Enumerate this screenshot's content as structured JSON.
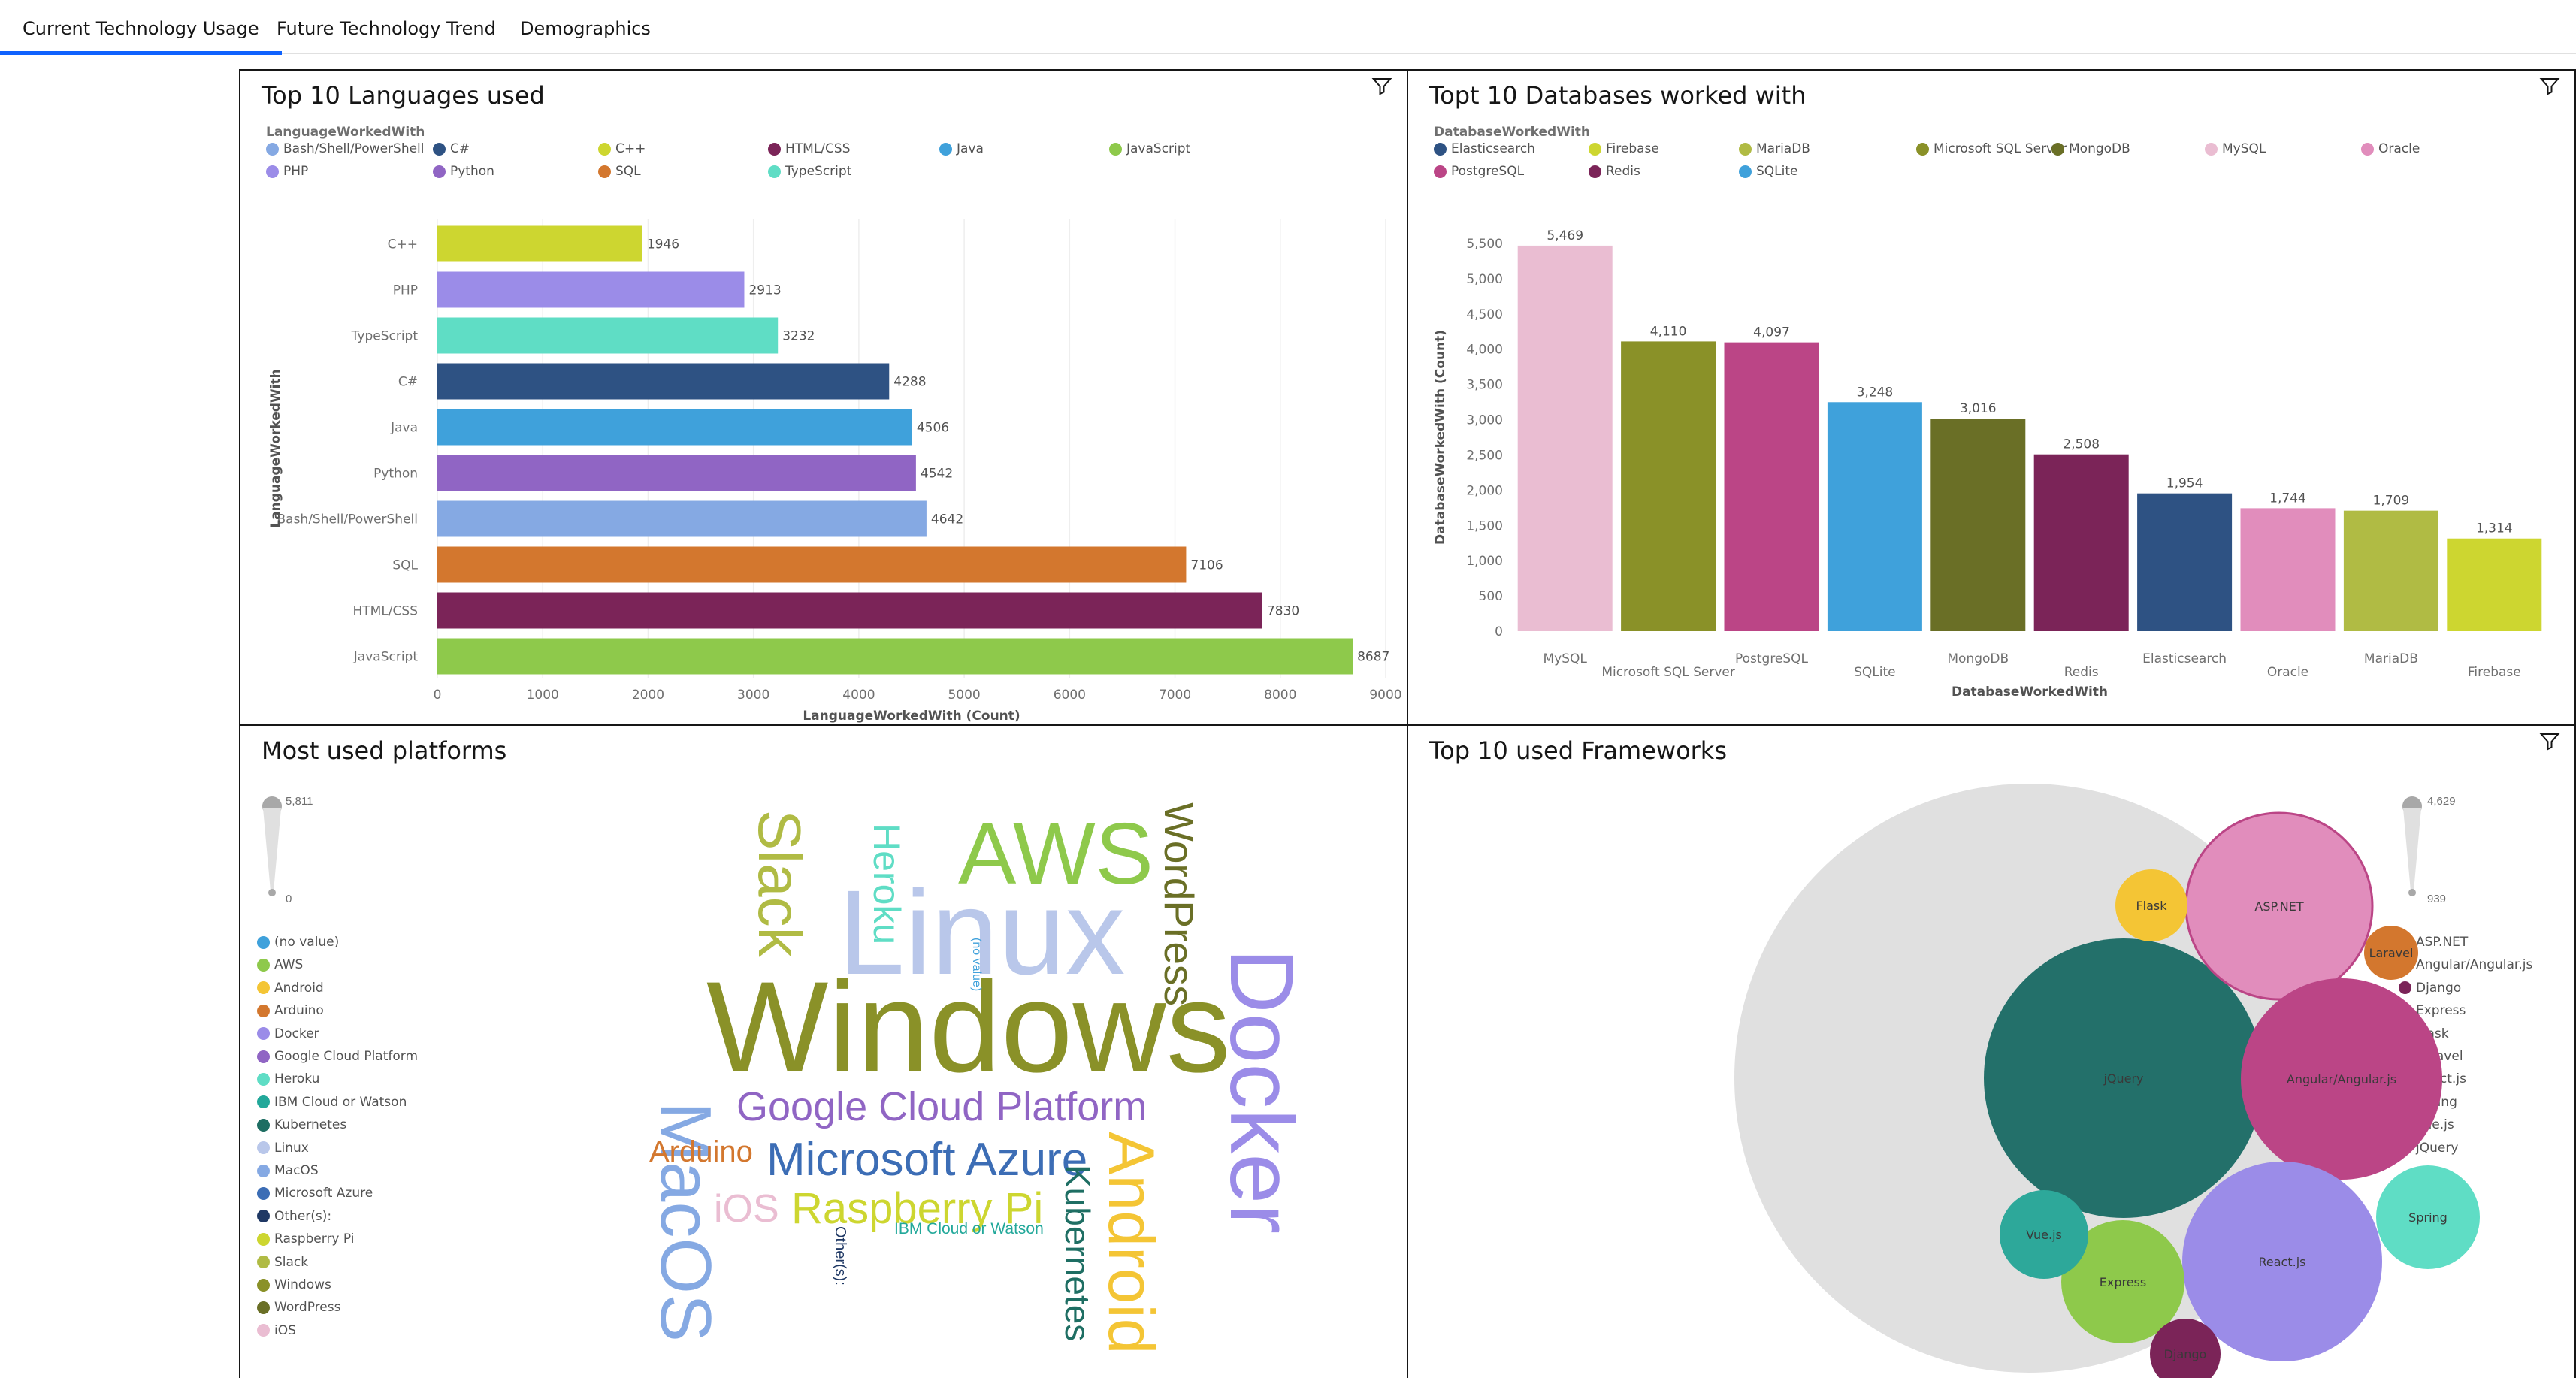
{
  "tabs": [
    {
      "label": "Current Technology Usage",
      "active": true
    },
    {
      "label": "Future Technology Trend",
      "active": false
    },
    {
      "label": "Demographics",
      "active": false
    }
  ],
  "languages_panel": {
    "title": "Top 10 Languages used",
    "legend_title": "LanguageWorkedWith"
  },
  "databases_panel": {
    "title": "Topt 10 Databases worked with",
    "legend_title": "DatabaseWorkedWith"
  },
  "platforms_panel": {
    "title": "Most used platforms",
    "scale_max": "5,811",
    "scale_min": "0"
  },
  "frameworks_panel": {
    "title": "Top 10 used Frameworks",
    "scale_max": "4,629",
    "scale_min": "939"
  },
  "chart_data": [
    {
      "type": "bar",
      "orientation": "horizontal",
      "title": "Top 10 Languages used",
      "xlabel": "LanguageWorkedWith (Count)",
      "ylabel": "LanguageWorkedWith",
      "xlim": [
        0,
        9000
      ],
      "ticks": [
        "0",
        "1000",
        "2000",
        "3000",
        "4000",
        "5000",
        "6000",
        "7000",
        "8000",
        "9000"
      ],
      "legend": [
        "Bash/Shell/PowerShell",
        "C#",
        "C++",
        "HTML/CSS",
        "Java",
        "JavaScript",
        "PHP",
        "Python",
        "SQL",
        "TypeScript"
      ],
      "categories": [
        "C++",
        "PHP",
        "TypeScript",
        "C#",
        "Java",
        "Python",
        "Bash/Shell/PowerShell",
        "SQL",
        "HTML/CSS",
        "JavaScript"
      ],
      "values": [
        1946,
        2913,
        3232,
        4288,
        4506,
        4542,
        4642,
        7106,
        7830,
        8687
      ],
      "value_labels": [
        "1946",
        "2913",
        "3232",
        "4288",
        "4506",
        "4542",
        "4642",
        "7106",
        "7830",
        "8687"
      ],
      "colors": {
        "Bash/Shell/PowerShell": "#85a9e3",
        "C#": "#2e5283",
        "C++": "#cdd630",
        "HTML/CSS": "#7b2458",
        "Java": "#3fa1db",
        "JavaScript": "#8ec94b",
        "PHP": "#9b8ce8",
        "Python": "#9065c4",
        "SQL": "#d3772e",
        "TypeScript": "#5fddc5"
      }
    },
    {
      "type": "bar",
      "title": "Topt 10 Databases worked with",
      "xlabel": "DatabaseWorkedWith",
      "ylabel": "DatabaseWorkedWith (Count)",
      "ylim": [
        0,
        5500
      ],
      "ticks": [
        "0",
        "500",
        "1,000",
        "1,500",
        "2,000",
        "2,500",
        "3,000",
        "3,500",
        "4,000",
        "4,500",
        "5,000",
        "5,500"
      ],
      "legend": [
        "Elasticsearch",
        "Firebase",
        "MariaDB",
        "Microsoft SQL Server",
        "MongoDB",
        "MySQL",
        "Oracle",
        "PostgreSQL",
        "Redis",
        "SQLite"
      ],
      "categories": [
        "MySQL",
        "Microsoft SQL Server",
        "PostgreSQL",
        "SQLite",
        "MongoDB",
        "Redis",
        "Elasticsearch",
        "Oracle",
        "MariaDB",
        "Firebase"
      ],
      "values": [
        5469,
        4110,
        4097,
        3248,
        3016,
        2508,
        1954,
        1744,
        1709,
        1314
      ],
      "value_labels": [
        "5,469",
        "4,110",
        "4,097",
        "3,248",
        "3,016",
        "2,508",
        "1,954",
        "1,744",
        "1,709",
        "1,314"
      ],
      "colors": {
        "Elasticsearch": "#2e5283",
        "Firebase": "#cdd630",
        "MariaDB": "#b0bb44",
        "Microsoft SQL Server": "#8a9128",
        "MongoDB": "#6a6f26",
        "MySQL": "#eabdd2",
        "Oracle": "#e18dbc",
        "PostgreSQL": "#bb4586",
        "Redis": "#7b2458",
        "SQLite": "#3fa1db"
      }
    },
    {
      "type": "wordcloud",
      "title": "Most used platforms",
      "legend": [
        "(no value)",
        "AWS",
        "Android",
        "Arduino",
        "Docker",
        "Google Cloud Platform",
        "Heroku",
        "IBM Cloud or Watson",
        "Kubernetes",
        "Linux",
        "MacOS",
        "Microsoft Azure",
        "Other(s):",
        "Raspberry Pi",
        "Slack",
        "Windows",
        "WordPress",
        "iOS"
      ],
      "colors": {
        "(no value)": "#3fa1db",
        "AWS": "#8ec94b",
        "Android": "#f4c535",
        "Arduino": "#d3772e",
        "Docker": "#9b8ce8",
        "Google Cloud Platform": "#9065c4",
        "Heroku": "#5fddc5",
        "IBM Cloud or Watson": "#22a89a",
        "Kubernetes": "#1e6e63",
        "Linux": "#b9c7ea",
        "MacOS": "#85a9e3",
        "Microsoft Azure": "#3c6db5",
        "Other(s):": "#1f3864",
        "Raspberry Pi": "#cdd630",
        "Slack": "#b0bb44",
        "Windows": "#8a9128",
        "WordPress": "#6a6f26",
        "iOS": "#eabdd2"
      }
    },
    {
      "type": "bubble",
      "title": "Top 10 used Frameworks",
      "legend": [
        "ASP.NET",
        "Angular/Angular.js",
        "Django",
        "Express",
        "Flask",
        "Laravel",
        "React.js",
        "Spring",
        "Vue.js",
        "jQuery"
      ],
      "bubbles": [
        "jQuery",
        "ASP.NET",
        "Angular/Angular.js",
        "React.js",
        "Spring",
        "Express",
        "Vue.js",
        "Flask",
        "Laravel",
        "Django"
      ],
      "colors": {
        "ASP.NET": "#e18dbc",
        "Angular/Angular.js": "#bb4586",
        "Django": "#7b2458",
        "Express": "#8ec94b",
        "Flask": "#f4c535",
        "Laravel": "#d3772e",
        "React.js": "#9b8ce8",
        "Spring": "#5fddc5",
        "Vue.js": "#2da89a",
        "jQuery": "#23706a"
      }
    }
  ]
}
